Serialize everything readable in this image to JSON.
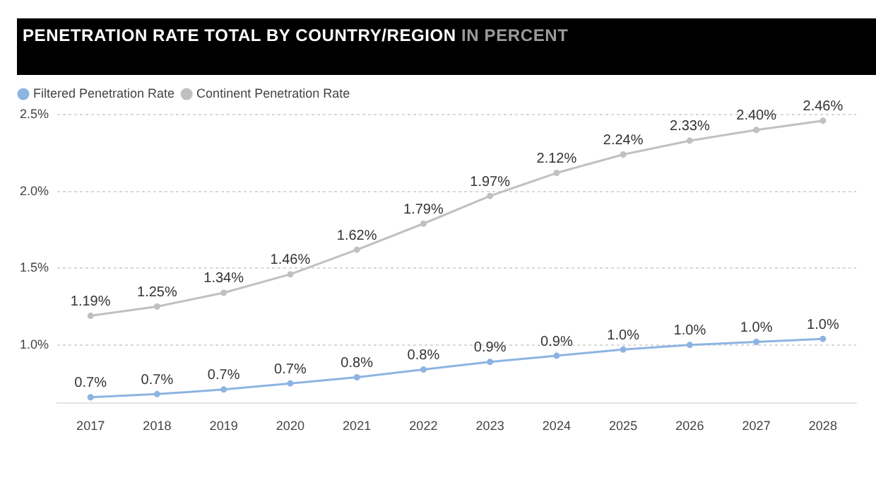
{
  "chart_data": {
    "type": "line",
    "title": "PENETRATION RATE TOTAL BY COUNTRY/REGION",
    "subtitle": "IN PERCENT",
    "categories": [
      "2017",
      "2018",
      "2019",
      "2020",
      "2021",
      "2022",
      "2023",
      "2024",
      "2025",
      "2026",
      "2027",
      "2028"
    ],
    "series": [
      {
        "name": "Filtered Penetration Rate",
        "color": "#8db4e2",
        "values": [
          0.66,
          0.68,
          0.71,
          0.75,
          0.79,
          0.84,
          0.89,
          0.93,
          0.97,
          1.0,
          1.02,
          1.04
        ],
        "value_labels": [
          "0.7%",
          "0.7%",
          "0.7%",
          "0.7%",
          "0.8%",
          "0.8%",
          "0.9%",
          "0.9%",
          "1.0%",
          "1.0%",
          "1.0%",
          "1.0%"
        ]
      },
      {
        "name": "Continent Penetration Rate",
        "color": "#c0c0c0",
        "values": [
          1.19,
          1.25,
          1.34,
          1.46,
          1.62,
          1.79,
          1.97,
          2.12,
          2.24,
          2.33,
          2.4,
          2.46
        ],
        "value_labels": [
          "1.19%",
          "1.25%",
          "1.34%",
          "1.46%",
          "1.62%",
          "1.79%",
          "1.97%",
          "2.12%",
          "2.24%",
          "2.33%",
          "2.40%",
          "2.46%"
        ]
      }
    ],
    "ylim": [
      0.62,
      2.5
    ],
    "yticks": [
      {
        "value": 1.0,
        "label": "1.0%"
      },
      {
        "value": 1.5,
        "label": "1.5%"
      },
      {
        "value": 2.0,
        "label": "2.0%"
      },
      {
        "value": 2.5,
        "label": "2.5%"
      }
    ],
    "grid": "y",
    "legend": "top left",
    "marker": "circle",
    "line_style": "solid"
  }
}
